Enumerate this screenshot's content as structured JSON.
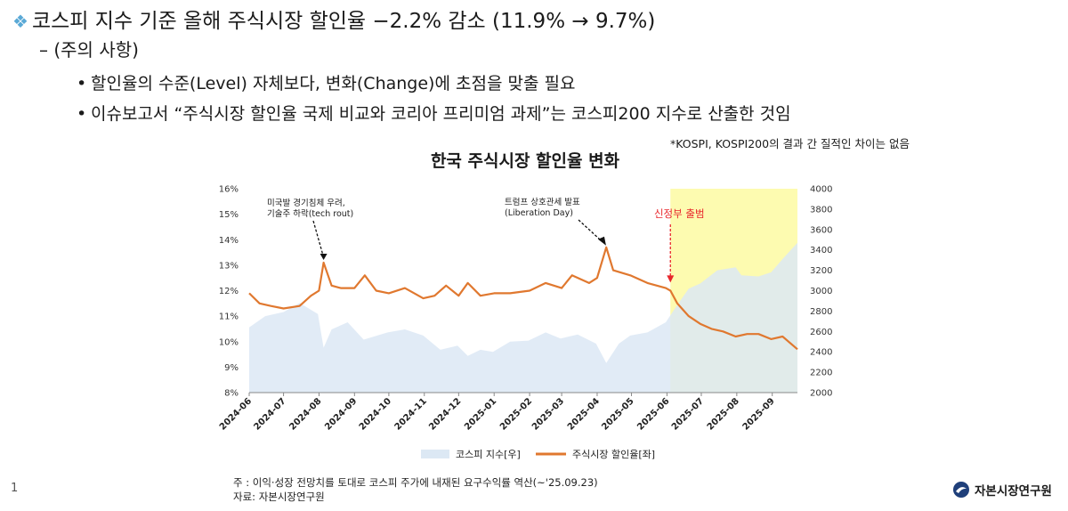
{
  "slide": {
    "headline": "코스피 지수 기준 올해 주식시장 할인율 −2.2% 감소 (11.9% → 9.7%)",
    "sub_heading": "– (주의 사항)",
    "bullets": [
      "할인율의 수준(Level) 자체보다, 변화(Change)에 초점을 맞출 필요",
      "이슈보고서 “주식시장 할인율 국제 비교와 코리아 프리미엄 과제”는 코스피200 지수로 산출한 것임"
    ],
    "note": "*KOSPI, KOSPI200의 결과 간 질적인 차이는 없음",
    "page_number": "1",
    "footnote": "주    : 이익·성장 전망치를 토대로 코스피 주가에 내재된 요구수익률 역산(~'25.09.23)",
    "source": "자료: 자본시장연구원",
    "logo_text": "자본시장연구원"
  },
  "chart_data": {
    "type": "line",
    "title": "한국 주식시장 할인율 변화",
    "x_tick_labels": [
      "2024-06",
      "2024-07",
      "2024-08",
      "2024-09",
      "2024-10",
      "2024-11",
      "2024-12",
      "2025-01",
      "2025-02",
      "2025-03",
      "2025-04",
      "2025-05",
      "2025-06",
      "2025-07",
      "2025-08",
      "2025-09"
    ],
    "x_range": [
      "2024-06-01",
      "2025-09-23"
    ],
    "y_left": {
      "range": [
        8,
        16
      ],
      "ticks": [
        "8%",
        "9%",
        "10%",
        "11%",
        "12%",
        "13%",
        "14%",
        "15%",
        "16%"
      ]
    },
    "y_right": {
      "range": [
        2000,
        4000
      ],
      "ticks": [
        "2000",
        "2200",
        "2400",
        "2600",
        "2800",
        "3000",
        "3200",
        "3400",
        "3600",
        "3800",
        "4000"
      ]
    },
    "highlight": {
      "from": "2025-06-04",
      "to": "2025-09-23",
      "color": "#fdfbb0"
    },
    "annotations": [
      {
        "text": [
          "미국발 경기침체 우려,",
          "기술주 하락(tech rout)"
        ],
        "x": "2024-08-05",
        "y": 13.1,
        "color": "#1a1a1a"
      },
      {
        "text": [
          "트럼프 상호관세 발표",
          "(Liberation Day)"
        ],
        "x": "2025-04-08",
        "y": 13.6,
        "color": "#1a1a1a"
      },
      {
        "text": [
          "신정부 출범"
        ],
        "x": "2025-06-04",
        "y": 11.9,
        "color": "#e8262b"
      }
    ],
    "series": [
      {
        "name": "코스피 지수[우]",
        "axis": "right",
        "kind": "area",
        "color": "#dce8f4",
        "points": [
          [
            "2024-06-01",
            2640
          ],
          [
            "2024-06-15",
            2750
          ],
          [
            "2024-07-01",
            2790
          ],
          [
            "2024-07-15",
            2880
          ],
          [
            "2024-07-31",
            2770
          ],
          [
            "2024-08-05",
            2440
          ],
          [
            "2024-08-12",
            2620
          ],
          [
            "2024-08-26",
            2690
          ],
          [
            "2024-09-09",
            2520
          ],
          [
            "2024-09-30",
            2590
          ],
          [
            "2024-10-15",
            2620
          ],
          [
            "2024-10-31",
            2560
          ],
          [
            "2024-11-15",
            2420
          ],
          [
            "2024-11-30",
            2460
          ],
          [
            "2024-12-09",
            2360
          ],
          [
            "2024-12-20",
            2420
          ],
          [
            "2024-12-31",
            2400
          ],
          [
            "2025-01-15",
            2500
          ],
          [
            "2025-01-31",
            2510
          ],
          [
            "2025-02-15",
            2590
          ],
          [
            "2025-02-28",
            2530
          ],
          [
            "2025-03-15",
            2570
          ],
          [
            "2025-03-31",
            2480
          ],
          [
            "2025-04-09",
            2290
          ],
          [
            "2025-04-20",
            2480
          ],
          [
            "2025-04-30",
            2560
          ],
          [
            "2025-05-15",
            2590
          ],
          [
            "2025-05-31",
            2690
          ],
          [
            "2025-06-10",
            2860
          ],
          [
            "2025-06-20",
            3020
          ],
          [
            "2025-06-30",
            3070
          ],
          [
            "2025-07-15",
            3200
          ],
          [
            "2025-07-31",
            3230
          ],
          [
            "2025-08-05",
            3150
          ],
          [
            "2025-08-20",
            3140
          ],
          [
            "2025-08-31",
            3180
          ],
          [
            "2025-09-10",
            3310
          ],
          [
            "2025-09-23",
            3470
          ]
        ]
      },
      {
        "name": "주식시장 할인율[좌]",
        "axis": "left",
        "kind": "line",
        "color": "#e0782f",
        "points": [
          [
            "2024-06-01",
            11.9
          ],
          [
            "2024-06-10",
            11.5
          ],
          [
            "2024-06-20",
            11.4
          ],
          [
            "2024-07-01",
            11.3
          ],
          [
            "2024-07-15",
            11.4
          ],
          [
            "2024-07-25",
            11.8
          ],
          [
            "2024-08-01",
            12.0
          ],
          [
            "2024-08-05",
            13.1
          ],
          [
            "2024-08-12",
            12.2
          ],
          [
            "2024-08-20",
            12.1
          ],
          [
            "2024-09-01",
            12.1
          ],
          [
            "2024-09-10",
            12.6
          ],
          [
            "2024-09-20",
            12.0
          ],
          [
            "2024-10-01",
            11.9
          ],
          [
            "2024-10-15",
            12.1
          ],
          [
            "2024-10-31",
            11.7
          ],
          [
            "2024-11-10",
            11.8
          ],
          [
            "2024-11-20",
            12.2
          ],
          [
            "2024-12-01",
            11.8
          ],
          [
            "2024-12-09",
            12.3
          ],
          [
            "2024-12-20",
            11.8
          ],
          [
            "2025-01-01",
            11.9
          ],
          [
            "2025-01-15",
            11.9
          ],
          [
            "2025-02-01",
            12.0
          ],
          [
            "2025-02-15",
            12.3
          ],
          [
            "2025-03-01",
            12.1
          ],
          [
            "2025-03-10",
            12.6
          ],
          [
            "2025-03-25",
            12.3
          ],
          [
            "2025-04-01",
            12.5
          ],
          [
            "2025-04-09",
            13.7
          ],
          [
            "2025-04-15",
            12.8
          ],
          [
            "2025-04-30",
            12.6
          ],
          [
            "2025-05-15",
            12.3
          ],
          [
            "2025-05-31",
            12.1
          ],
          [
            "2025-06-04",
            12.0
          ],
          [
            "2025-06-10",
            11.5
          ],
          [
            "2025-06-20",
            11.0
          ],
          [
            "2025-06-30",
            10.7
          ],
          [
            "2025-07-10",
            10.5
          ],
          [
            "2025-07-20",
            10.4
          ],
          [
            "2025-07-31",
            10.2
          ],
          [
            "2025-08-10",
            10.3
          ],
          [
            "2025-08-20",
            10.3
          ],
          [
            "2025-08-31",
            10.1
          ],
          [
            "2025-09-10",
            10.2
          ],
          [
            "2025-09-23",
            9.7
          ]
        ]
      }
    ],
    "legend": {
      "placement": "bottom"
    }
  }
}
